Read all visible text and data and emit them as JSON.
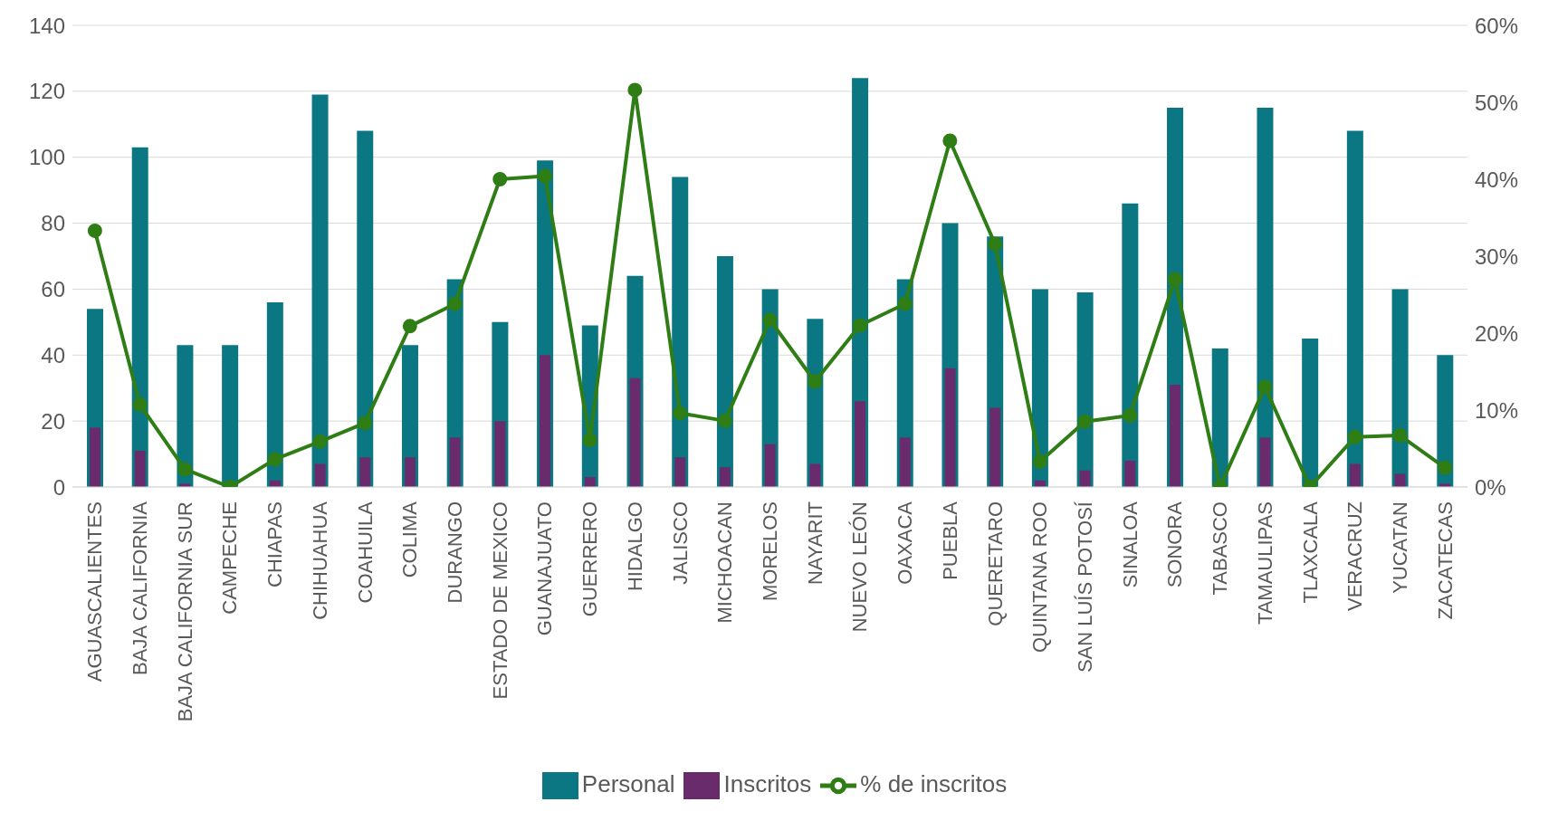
{
  "chart_data": {
    "type": "bar",
    "categories": [
      "AGUASCALIENTES",
      "BAJA CALIFORNIA",
      "BAJA CALIFORNIA SUR",
      "CAMPECHE",
      "CHIAPAS",
      "CHIHUAHUA",
      "COAHUILA",
      "COLIMA",
      "DURANGO",
      "ESTADO DE MEXICO",
      "GUANAJUATO",
      "GUERRERO",
      "HIDALGO",
      "JALISCO",
      "MICHOACAN",
      "MORELOS",
      "NAYARIT",
      "NUEVO LEÓN",
      "OAXACA",
      "PUEBLA",
      "QUERETARO",
      "QUINTANA ROO",
      "SAN LUÍS POTOSÍ",
      "SINALOA",
      "SONORA",
      "TABASCO",
      "TAMAULIPAS",
      "TLAXCALA",
      "VERACRUZ",
      "YUCATAN",
      "ZACATECAS"
    ],
    "series": [
      {
        "name": "Personal",
        "color": "#0b7783",
        "values": [
          54,
          103,
          43,
          43,
          56,
          119,
          108,
          43,
          63,
          50,
          99,
          49,
          64,
          94,
          70,
          60,
          51,
          124,
          63,
          80,
          76,
          60,
          59,
          86,
          115,
          42,
          115,
          45,
          108,
          60,
          40
        ]
      },
      {
        "name": "Inscritos",
        "color": "#6a2b6c",
        "values": [
          18,
          11,
          1,
          0,
          2,
          7,
          9,
          9,
          15,
          20,
          40,
          3,
          33,
          9,
          6,
          13,
          7,
          26,
          15,
          36,
          24,
          2,
          5,
          8,
          31,
          0,
          15,
          0,
          7,
          4,
          1
        ]
      },
      {
        "name": "% de inscritos",
        "type": "line",
        "axis": "y2",
        "color": "#2f7d15",
        "values": [
          33.3,
          10.7,
          2.3,
          0,
          3.6,
          5.9,
          8.3,
          20.9,
          23.8,
          40,
          40.4,
          6.1,
          51.6,
          9.6,
          8.6,
          21.7,
          13.7,
          21,
          23.8,
          45,
          31.6,
          3.3,
          8.5,
          9.3,
          27,
          0,
          13,
          0,
          6.5,
          6.7,
          2.5
        ]
      }
    ],
    "ylim": [
      0,
      140
    ],
    "yticks": [
      0,
      20,
      40,
      60,
      80,
      100,
      120,
      140
    ],
    "y2lim": [
      0,
      60
    ],
    "y2ticks": [
      {
        "value": 0,
        "label": "0%"
      },
      {
        "value": 10,
        "label": "10%"
      },
      {
        "value": 20,
        "label": "20%"
      },
      {
        "value": 30,
        "label": "30%"
      },
      {
        "value": 40,
        "label": "40%"
      },
      {
        "value": 50,
        "label": "50%"
      },
      {
        "value": 60,
        "label": "60%"
      }
    ],
    "grid": "y",
    "legend": "bottom",
    "marker": "circle",
    "line_style": "solid"
  }
}
